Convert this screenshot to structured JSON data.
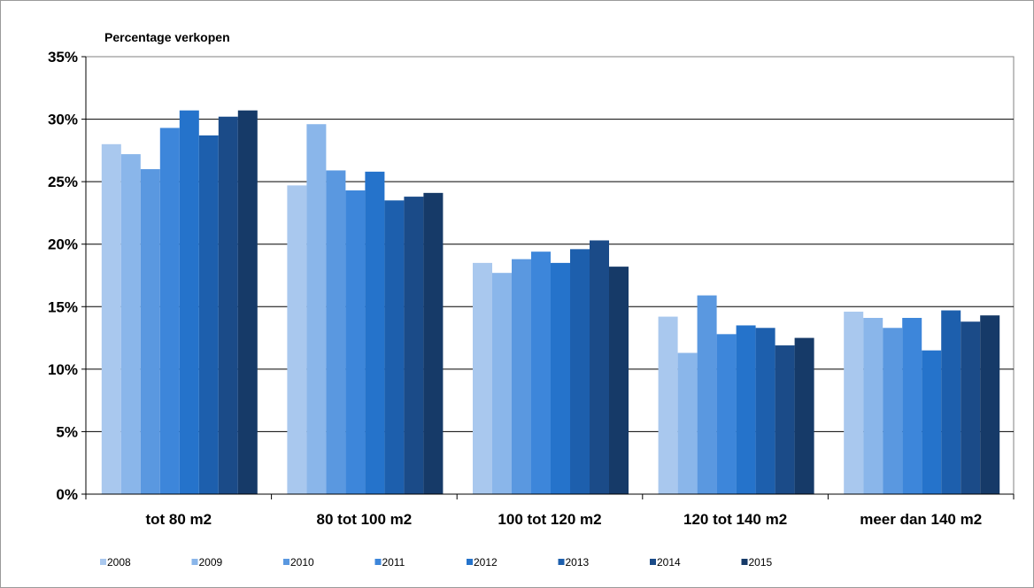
{
  "chart_data": {
    "type": "bar",
    "title": "",
    "ylabel": "Percentage verkopen",
    "xlabel": "",
    "ylim": [
      0,
      35
    ],
    "yticks": [
      0,
      5,
      10,
      15,
      20,
      25,
      30,
      35
    ],
    "ytick_labels": [
      "0%",
      "5%",
      "10%",
      "15%",
      "20%",
      "25%",
      "30%",
      "35%"
    ],
    "grid": true,
    "legend_position": "bottom",
    "categories": [
      "tot 80 m2",
      "80 tot 100 m2",
      "100 tot 120 m2",
      "120 tot 140 m2",
      "meer dan 140 m2"
    ],
    "series": [
      {
        "name": "2008",
        "color": "#a9c8ee",
        "values": [
          28.0,
          24.7,
          18.5,
          14.2,
          14.6
        ]
      },
      {
        "name": "2009",
        "color": "#8ab6ea",
        "values": [
          27.2,
          29.6,
          17.7,
          11.3,
          14.1
        ]
      },
      {
        "name": "2010",
        "color": "#5a98e0",
        "values": [
          26.0,
          25.9,
          18.8,
          15.9,
          13.3
        ]
      },
      {
        "name": "2011",
        "color": "#3d86da",
        "values": [
          29.3,
          24.3,
          19.4,
          12.8,
          14.1
        ]
      },
      {
        "name": "2012",
        "color": "#2573cb",
        "values": [
          30.7,
          25.8,
          18.5,
          13.5,
          11.5
        ]
      },
      {
        "name": "2013",
        "color": "#1d5fad",
        "values": [
          28.7,
          23.5,
          19.6,
          13.3,
          14.7
        ]
      },
      {
        "name": "2014",
        "color": "#1b4b88",
        "values": [
          30.2,
          23.8,
          20.3,
          11.9,
          13.8
        ]
      },
      {
        "name": "2015",
        "color": "#163a68",
        "values": [
          30.7,
          24.1,
          18.2,
          12.5,
          14.3
        ]
      }
    ]
  }
}
